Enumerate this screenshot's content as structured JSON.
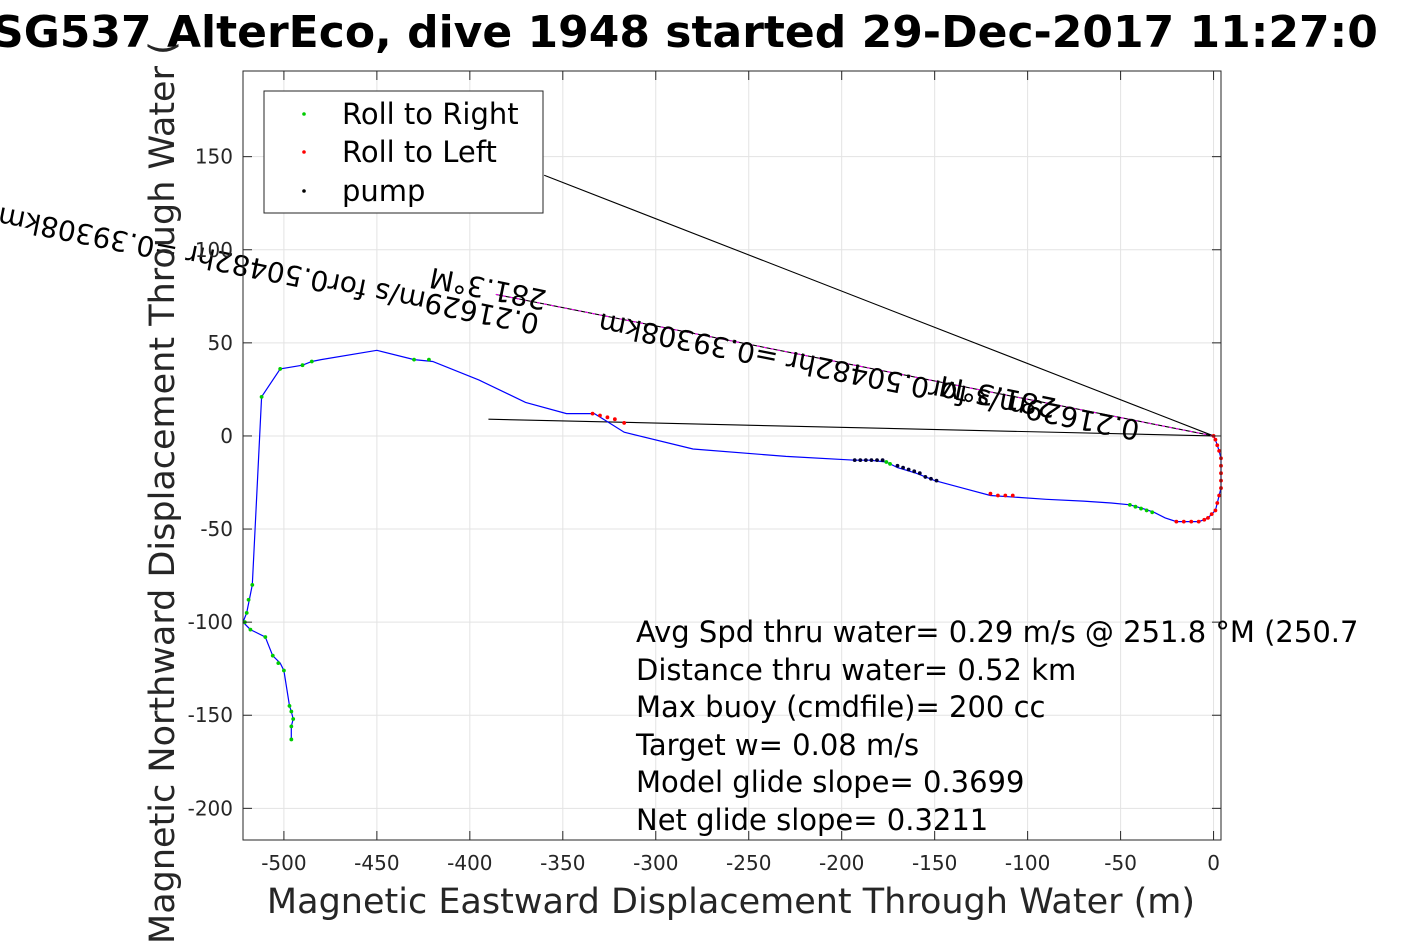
{
  "chart_data": {
    "type": "scatter",
    "title": "SG537 AlterEco, dive 1948 started 29-Dec-2017 11:27:0",
    "xlabel": "Magnetic Eastward Displacement Through Water (m)",
    "ylabel": "Magnetic Northward Displacement Through Water (",
    "xlim": [
      -522,
      4
    ],
    "ylim": [
      -217,
      196
    ],
    "xticks": [
      -500,
      -450,
      -400,
      -350,
      -300,
      -250,
      -200,
      -150,
      -100,
      -50,
      0
    ],
    "yticks": [
      -200,
      -150,
      -100,
      -50,
      0,
      50,
      100,
      150
    ],
    "xtick_labels": [
      "-500",
      "-450",
      "-400",
      "-350",
      "-300",
      "-250",
      "-200",
      "-150",
      "-100",
      "-50",
      "0"
    ],
    "ytick_labels": [
      "-200",
      "-150",
      "-100",
      "-50",
      "0",
      "50",
      "100",
      "150"
    ],
    "grid": true,
    "legend_position": "top-left",
    "legend": [
      {
        "label": "Roll to Right",
        "color": "#00cc00"
      },
      {
        "label": "Roll to Left",
        "color": "#ff0000"
      },
      {
        "label": "pump",
        "color": "#000000"
      }
    ],
    "track_color": "#0000ff",
    "track": [
      [
        0,
        0
      ],
      [
        1,
        -2
      ],
      [
        2,
        -5
      ],
      [
        3,
        -8
      ],
      [
        4,
        -12
      ],
      [
        4,
        -16
      ],
      [
        4,
        -20
      ],
      [
        4,
        -24
      ],
      [
        4,
        -28
      ],
      [
        3,
        -32
      ],
      [
        2,
        -36
      ],
      [
        1,
        -40
      ],
      [
        -1,
        -42
      ],
      [
        -3,
        -44
      ],
      [
        -5,
        -45
      ],
      [
        -8,
        -46
      ],
      [
        -12,
        -46
      ],
      [
        -16,
        -46
      ],
      [
        -20,
        -46
      ],
      [
        -26,
        -44
      ],
      [
        -32,
        -41
      ],
      [
        -38,
        -39
      ],
      [
        -45,
        -37
      ],
      [
        -55,
        -36
      ],
      [
        -70,
        -35
      ],
      [
        -90,
        -34
      ],
      [
        -105,
        -33
      ],
      [
        -120,
        -32
      ],
      [
        -135,
        -28
      ],
      [
        -150,
        -24
      ],
      [
        -160,
        -20
      ],
      [
        -170,
        -17
      ],
      [
        -176,
        -14
      ],
      [
        -185,
        -13
      ],
      [
        -193,
        -13
      ],
      [
        -230,
        -11
      ],
      [
        -280,
        -7
      ],
      [
        -317,
        2
      ],
      [
        -325,
        7
      ],
      [
        -333,
        12
      ],
      [
        -348,
        12
      ],
      [
        -370,
        18
      ],
      [
        -395,
        30
      ],
      [
        -420,
        40
      ],
      [
        -430,
        41
      ],
      [
        -450,
        46
      ],
      [
        -480,
        41
      ],
      [
        -485,
        40
      ],
      [
        -490,
        38
      ],
      [
        -502,
        36
      ],
      [
        -512,
        21
      ],
      [
        -515,
        -40
      ],
      [
        -517,
        -80
      ],
      [
        -520,
        -95
      ],
      [
        -522,
        -100
      ],
      [
        -518,
        -104
      ],
      [
        -510,
        -108
      ],
      [
        -506,
        -118
      ],
      [
        -502,
        -122
      ],
      [
        -500,
        -126
      ],
      [
        -497,
        -145
      ],
      [
        -496,
        -148
      ],
      [
        -495,
        -152
      ],
      [
        -496,
        -156
      ],
      [
        -496,
        -163
      ]
    ],
    "roll_right_points": [
      [
        -45,
        -37
      ],
      [
        -42,
        -38
      ],
      [
        -39,
        -39
      ],
      [
        -36,
        -40
      ],
      [
        -33,
        -41
      ],
      [
        -485,
        40
      ],
      [
        -490,
        38
      ],
      [
        -502,
        36
      ],
      [
        -512,
        21
      ],
      [
        -430,
        41
      ],
      [
        -422,
        41
      ],
      [
        -517,
        -80
      ],
      [
        -519,
        -88
      ],
      [
        -520,
        -95
      ],
      [
        -521,
        -100
      ],
      [
        -518,
        -104
      ],
      [
        -510,
        -108
      ],
      [
        -506,
        -118
      ],
      [
        -503,
        -122
      ],
      [
        -500,
        -126
      ],
      [
        -497,
        -145
      ],
      [
        -496,
        -148
      ],
      [
        -495,
        -152
      ],
      [
        -496,
        -156
      ],
      [
        -496,
        -163
      ],
      [
        -176,
        -14
      ],
      [
        -174,
        -15
      ]
    ],
    "roll_left_points": [
      [
        0,
        0
      ],
      [
        1,
        -2
      ],
      [
        2,
        -5
      ],
      [
        3,
        -8
      ],
      [
        4,
        -12
      ],
      [
        4,
        -16
      ],
      [
        4,
        -20
      ],
      [
        4,
        -24
      ],
      [
        4,
        -28
      ],
      [
        3,
        -32
      ],
      [
        2,
        -36
      ],
      [
        1,
        -40
      ],
      [
        -1,
        -42
      ],
      [
        -3,
        -44
      ],
      [
        -5,
        -45
      ],
      [
        -8,
        -46
      ],
      [
        -12,
        -46
      ],
      [
        -16,
        -46
      ],
      [
        -20,
        -46
      ],
      [
        -108,
        -32
      ],
      [
        -112,
        -32
      ],
      [
        -116,
        -32
      ],
      [
        -120,
        -31
      ],
      [
        -317,
        7
      ],
      [
        -322,
        9
      ],
      [
        -326,
        10
      ],
      [
        -330,
        11
      ],
      [
        -334,
        12
      ]
    ],
    "pump_points": [
      [
        -193,
        -13
      ],
      [
        -190,
        -13
      ],
      [
        -187,
        -13
      ],
      [
        -184,
        -13
      ],
      [
        -181,
        -13
      ],
      [
        -178,
        -13
      ],
      [
        -170,
        -16
      ],
      [
        -167,
        -17
      ],
      [
        -164,
        -18
      ],
      [
        -161,
        -19
      ],
      [
        -158,
        -20
      ],
      [
        -155,
        -22
      ],
      [
        -152,
        -23
      ],
      [
        -149,
        -24
      ]
    ],
    "reference_lines": [
      {
        "from": [
          -390,
          9
        ],
        "to": [
          0,
          0
        ],
        "color": "#000000"
      },
      {
        "from": [
          -386,
          76
        ],
        "to": [
          0,
          0
        ],
        "color": "#000000",
        "overlay_color": "#ff00ff"
      },
      {
        "from": [
          -360,
          140
        ],
        "to": [
          0,
          0
        ],
        "color": "#000000"
      }
    ],
    "rotated_annotations": [
      {
        "text": "281.3°M",
        "at": [
          -358,
          78
        ],
        "rotation": 191.3
      },
      {
        "text": "0.21629m/s for0.50482hr =0.39308km",
        "at": [
          -362,
          65
        ],
        "rotation": 191.3
      },
      {
        "text": "281.3°M",
        "at": [
          -84,
          20
        ],
        "rotation": 191.3
      },
      {
        "text": "0.21629m/s for0.50482hr =0.39308km",
        "at": [
          -39,
          8
        ],
        "rotation": 191.3
      }
    ],
    "annotations": [
      "Avg Spd thru water=  0.29 m/s @ 251.8 °M (250.7",
      "Distance thru water=  0.52 km",
      "Max buoy (cmdfile)= 200 cc",
      "Target w= 0.08 m/s",
      "Model glide slope= 0.3699",
      "Net glide slope= 0.3211"
    ]
  }
}
